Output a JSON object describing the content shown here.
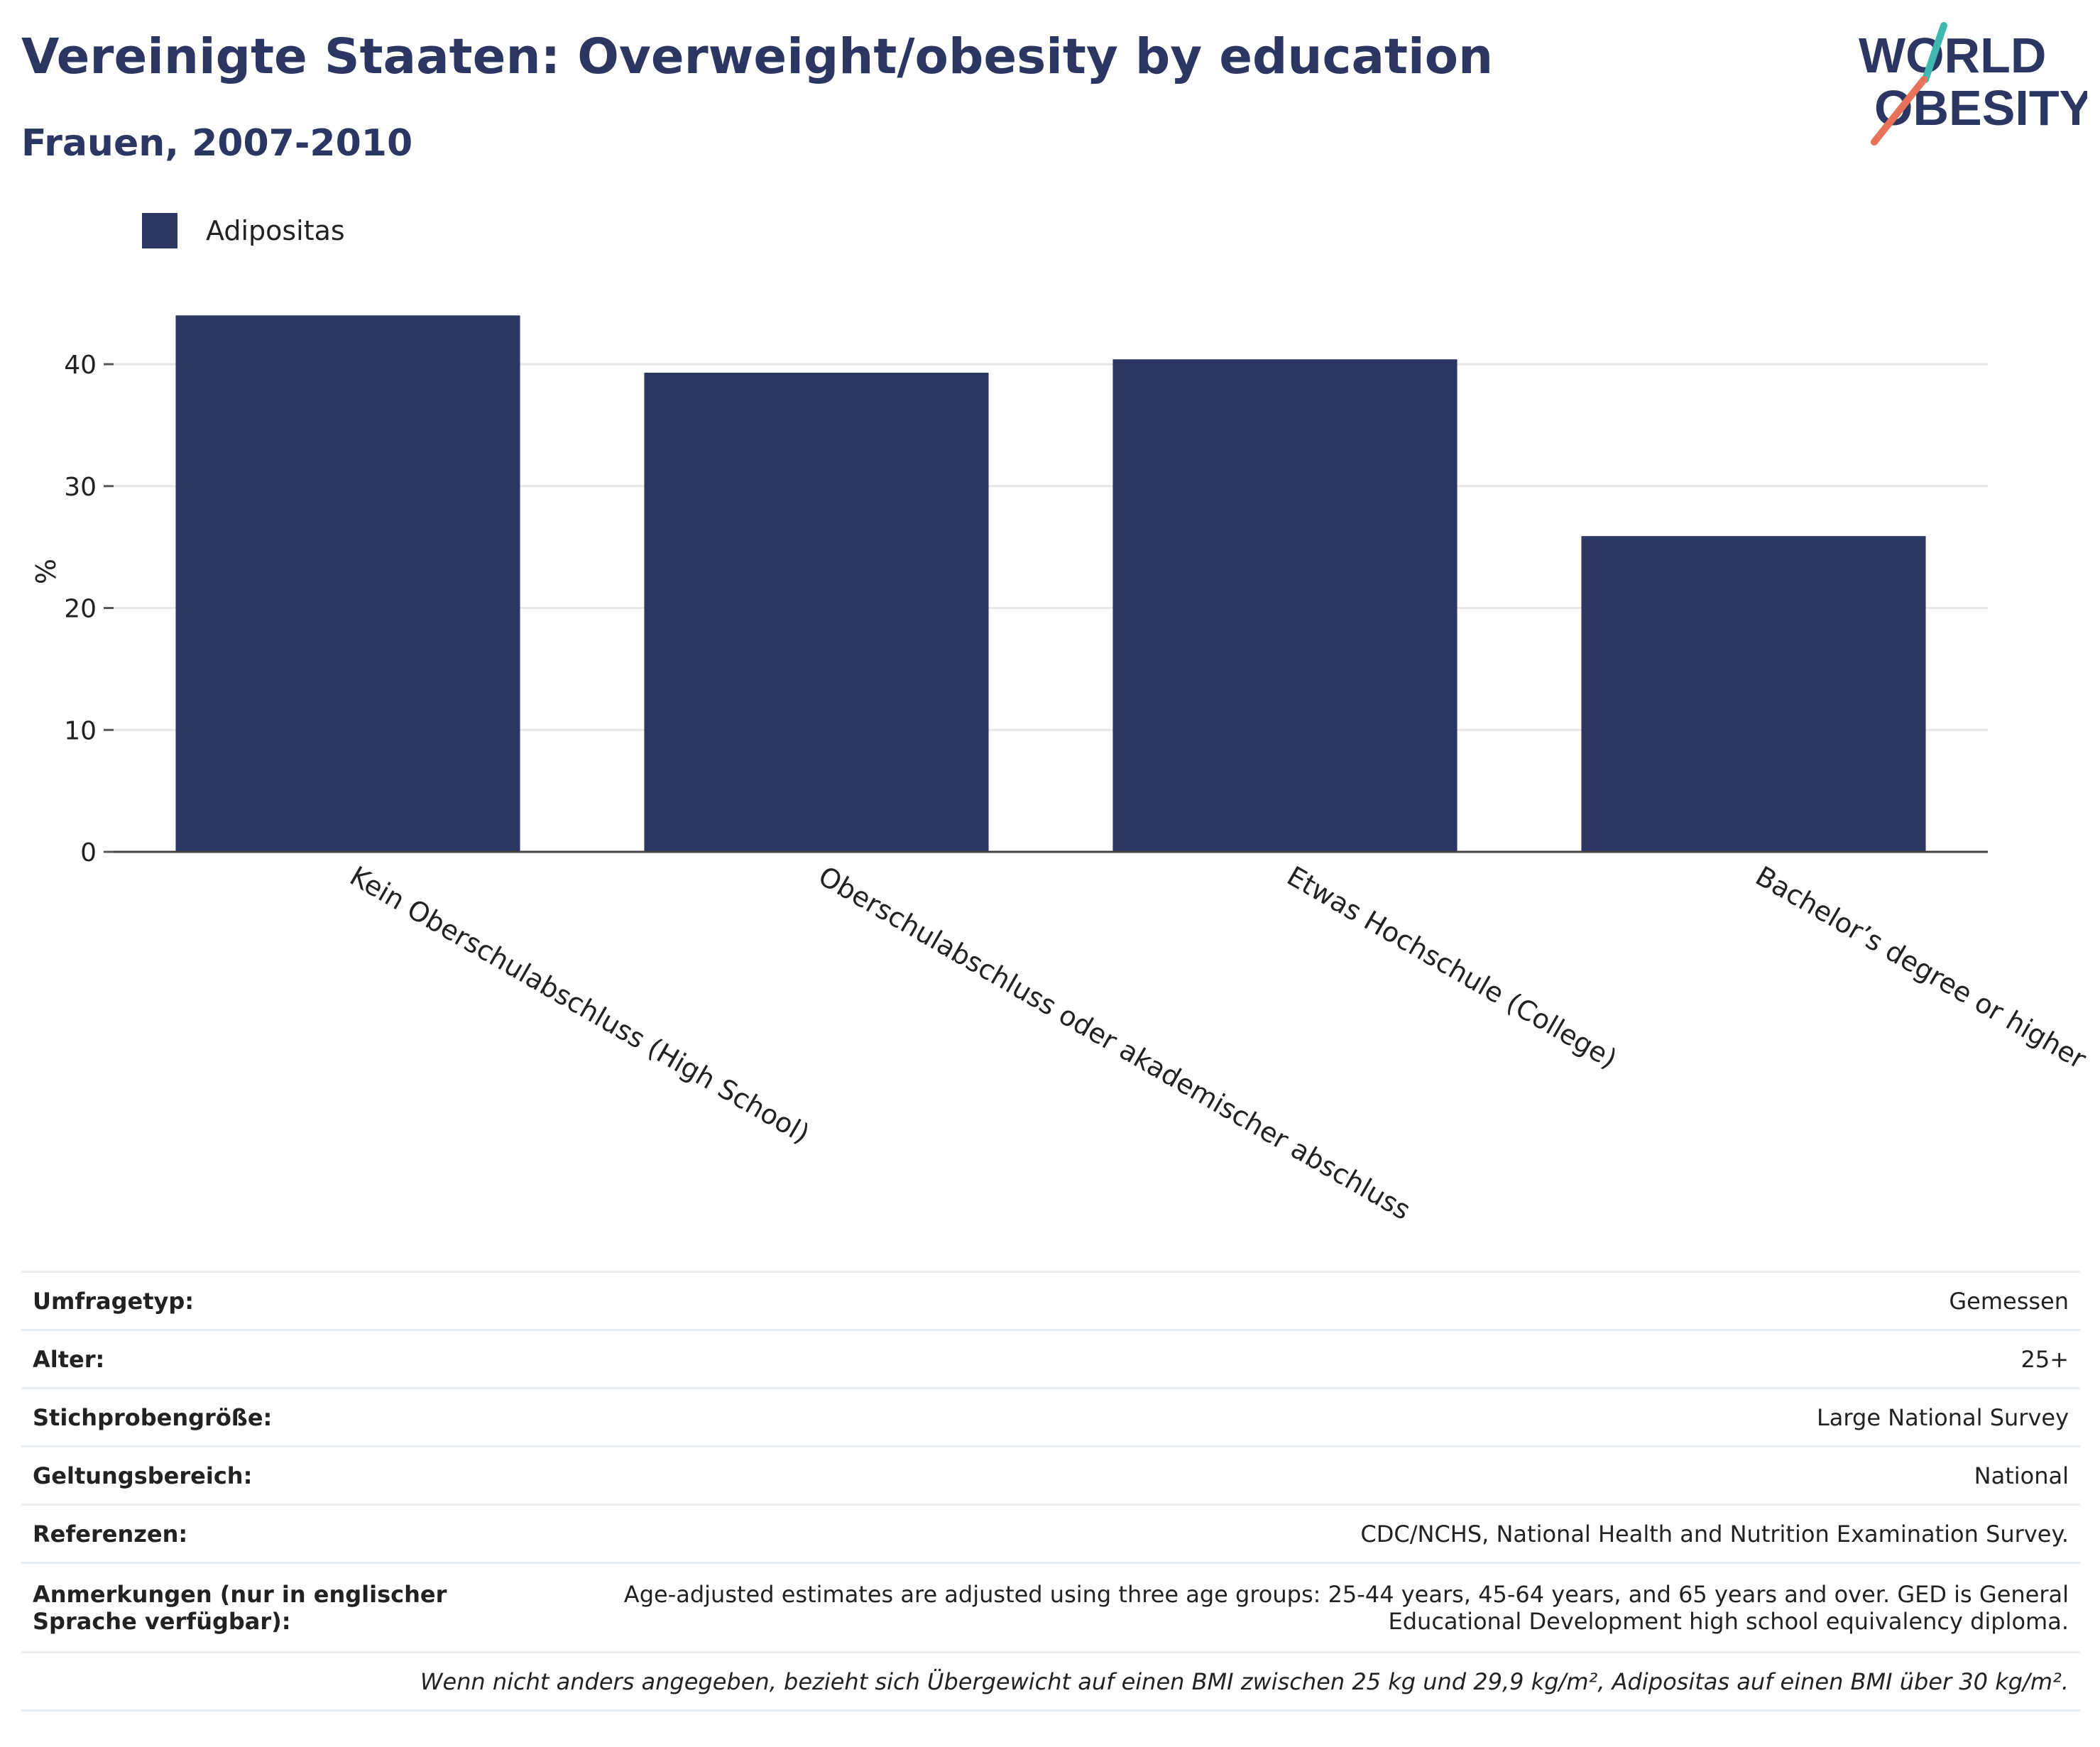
{
  "header": {
    "title": "Vereinigte Staaten: Overweight/obesity by education",
    "subtitle": "Frauen, 2007-2010"
  },
  "logo": {
    "line1": "WORLD",
    "line2": "OBESITY"
  },
  "colors": {
    "bar": "#2b3762",
    "title": "#2b3762",
    "logo_teal": "#3fb8af",
    "logo_coral": "#e8735a"
  },
  "chart_data": {
    "type": "bar",
    "categories": [
      "Kein Oberschulabschluss (High School)",
      "Oberschulabschluss oder akademischer abschluss",
      "Etwas Hochschule (College)",
      "Bachelor’s degree or higher"
    ],
    "series": [
      {
        "name": "Adipositas",
        "values": [
          44.0,
          39.3,
          40.4,
          25.9
        ]
      }
    ],
    "ylabel": "%",
    "ylim": [
      0,
      46
    ],
    "yticks": [
      0,
      10,
      20,
      30,
      40
    ],
    "grid": true,
    "legend": "top-left"
  },
  "info": {
    "rows": [
      {
        "key": "Umfragetyp:",
        "value": "Gemessen"
      },
      {
        "key": "Alter:",
        "value": "25+"
      },
      {
        "key": "Stichprobengröße:",
        "value": "Large National Survey"
      },
      {
        "key": "Geltungsbereich:",
        "value": "National"
      },
      {
        "key": "Referenzen:",
        "value": "CDC/NCHS, National Health and Nutrition Examination Survey."
      },
      {
        "key": "Anmerkungen (nur in englischer Sprache verfügbar):",
        "value": "Age-adjusted estimates are adjusted using three age groups: 25-44 years, 45-64 years, and 65 years and over. GED is General Educational Development high school equivalency diploma."
      }
    ],
    "footnote": "Wenn nicht anders angegeben, bezieht sich Übergewicht auf einen BMI zwischen 25 kg und 29,9 kg/m², Adipositas auf einen BMI über 30 kg/m²."
  }
}
